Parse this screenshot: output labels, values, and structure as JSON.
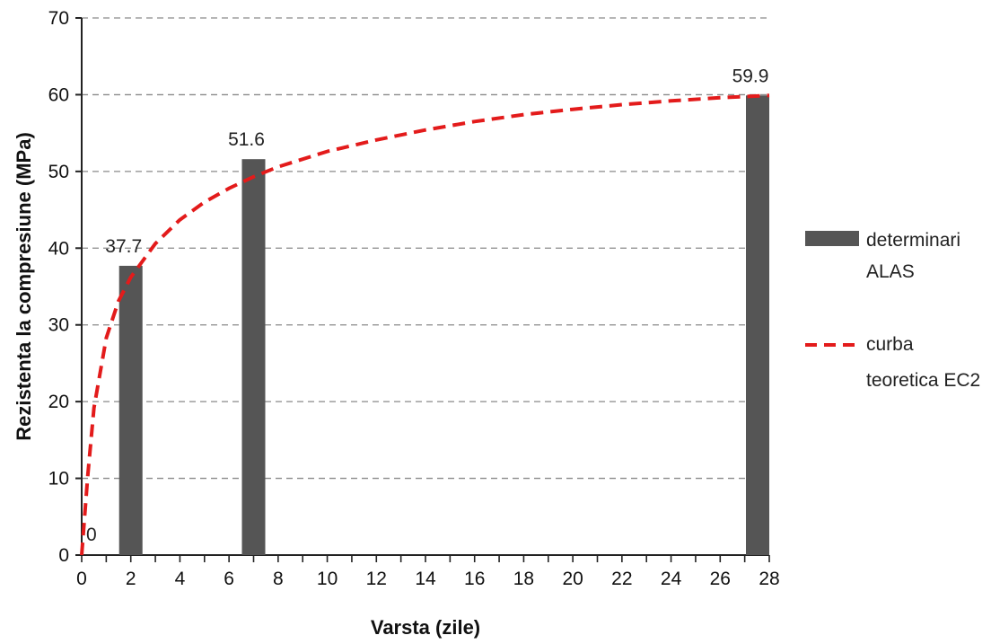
{
  "chart_data": {
    "type": "bar",
    "title": "",
    "xlabel": "Varsta (zile)",
    "ylabel": "Rezistenta la compresiune (MPa)",
    "xlim": [
      0,
      28
    ],
    "ylim": [
      0,
      70
    ],
    "xticks": [
      0,
      2,
      4,
      6,
      8,
      10,
      12,
      14,
      16,
      18,
      20,
      22,
      24,
      26,
      28
    ],
    "yticks": [
      0,
      10,
      20,
      30,
      40,
      50,
      60,
      70
    ],
    "grid": "horizontal dashed",
    "legend_position": "right",
    "series": [
      {
        "name": "determinari ALAS",
        "type": "bar",
        "color": "#555555",
        "x": [
          2,
          7,
          28
        ],
        "values": [
          37.7,
          51.6,
          59.9
        ],
        "data_labels": [
          "37.7",
          "51.6",
          "59.9"
        ]
      },
      {
        "name": "curba teoretica EC2",
        "type": "line",
        "style": "dashed",
        "color": "#e31b1b",
        "x": [
          0,
          0.25,
          0.5,
          1,
          1.5,
          2,
          3,
          4,
          5,
          6,
          7,
          8,
          10,
          12,
          14,
          16,
          18,
          20,
          22,
          24,
          26,
          28
        ],
        "values": [
          0,
          10.4,
          19.2,
          28.3,
          33.1,
          36.2,
          40.6,
          43.7,
          46.0,
          47.8,
          49.3,
          50.6,
          52.6,
          54.1,
          55.4,
          56.5,
          57.4,
          58.1,
          58.7,
          59.2,
          59.6,
          59.9
        ]
      }
    ],
    "origin_label": "0"
  },
  "legend": [
    {
      "lines": [
        "determinari",
        "ALAS"
      ]
    },
    {
      "lines": [
        "curba",
        "teoretica EC2"
      ]
    }
  ]
}
